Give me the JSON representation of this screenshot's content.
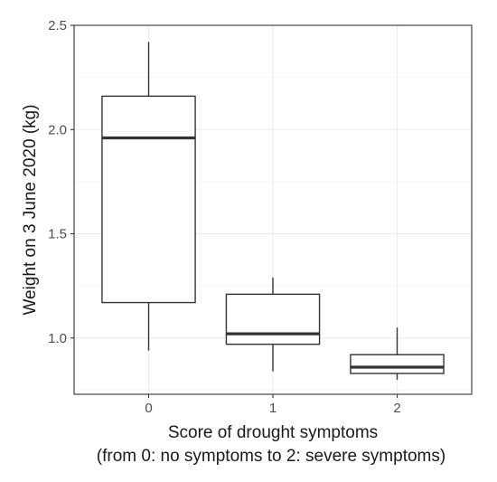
{
  "chart_data": {
    "type": "boxplot",
    "title": "",
    "xlabel": "Score of drought symptoms",
    "xlabel_line2": "(from 0: no symptoms to 2: severe symptoms)",
    "ylabel": "Weight on 3 June 2020 (kg)",
    "ylim": [
      0.73,
      2.5
    ],
    "yticks": [
      1.0,
      1.5,
      2.0,
      2.5
    ],
    "ytick_labels": [
      "1.0",
      "1.5",
      "2.0",
      "2.5"
    ],
    "categories": [
      "0",
      "1",
      "2"
    ],
    "grid": true,
    "legend": "none",
    "colors": {
      "box_stroke": "#333333",
      "grid_major": "#ebebeb",
      "grid_minor": "#f5f5f5",
      "panel_border": "#333333",
      "panel_bg": "#ffffff"
    },
    "boxes": [
      {
        "category": "0",
        "whisker_low": 0.94,
        "q1": 1.17,
        "median": 1.96,
        "q3": 2.16,
        "whisker_high": 2.42
      },
      {
        "category": "1",
        "whisker_low": 0.84,
        "q1": 0.97,
        "median": 1.02,
        "q3": 1.21,
        "whisker_high": 1.29
      },
      {
        "category": "2",
        "whisker_low": 0.8,
        "q1": 0.83,
        "median": 0.86,
        "q3": 0.92,
        "whisker_high": 1.05
      }
    ]
  }
}
